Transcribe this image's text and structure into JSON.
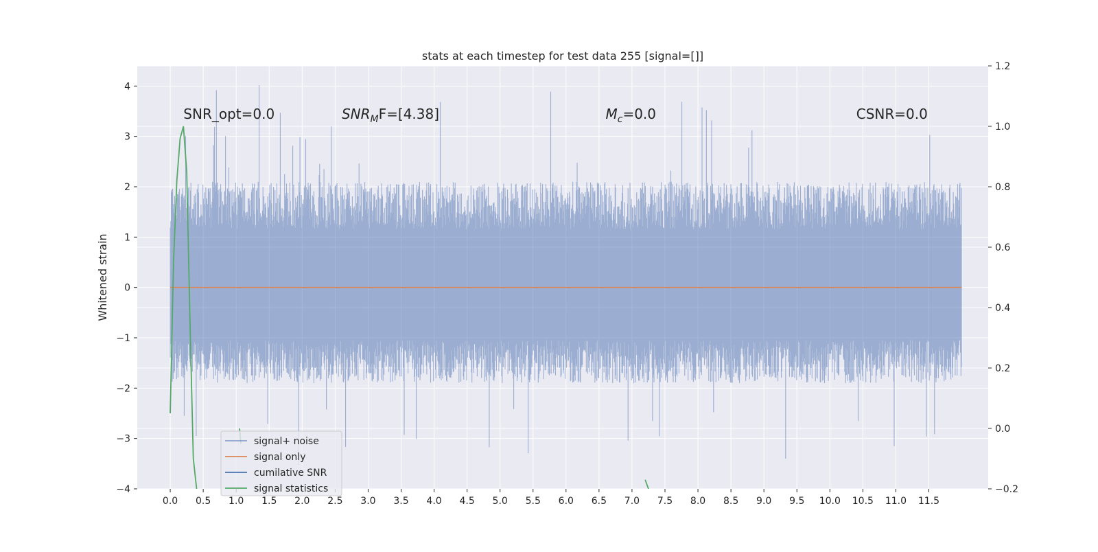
{
  "chart_data": {
    "type": "line",
    "title": "stats at each timestep for test data 255 [signal=[]]",
    "xlabel": "",
    "ylabel": "Whitened strain",
    "y2label": "",
    "xlim": [
      -0.5,
      12.4
    ],
    "ylim": [
      -4,
      4.4
    ],
    "y2lim": [
      -0.2,
      1.2
    ],
    "x_ticks": [
      0.0,
      0.5,
      1.0,
      1.5,
      2.0,
      2.5,
      3.0,
      3.5,
      4.0,
      4.5,
      5.0,
      5.5,
      6.0,
      6.5,
      7.0,
      7.5,
      8.0,
      8.5,
      9.0,
      9.5,
      10.0,
      10.5,
      11.0,
      11.5
    ],
    "x_tick_labels": [
      "0.0",
      "0.5",
      "1.0",
      "1.5",
      "2.0",
      "2.5",
      "3.0",
      "3.5",
      "4.0",
      "4.5",
      "5.0",
      "5.5",
      "6.0",
      "6.5",
      "7.0",
      "7.5",
      "8.0",
      "8.5",
      "9.0",
      "9.5",
      "10.0",
      "10.5",
      "11.0",
      "11.5"
    ],
    "y_ticks": [
      -4,
      -3,
      -2,
      -1,
      0,
      1,
      2,
      3,
      4
    ],
    "y_tick_labels": [
      "−4",
      "−3",
      "−2",
      "−1",
      "0",
      "1",
      "2",
      "3",
      "4"
    ],
    "y2_ticks": [
      -0.2,
      0.0,
      0.2,
      0.4,
      0.6,
      0.8,
      1.0,
      1.2
    ],
    "y2_tick_labels": [
      "−0.2",
      "0.0",
      "0.2",
      "0.4",
      "0.6",
      "0.8",
      "1.0",
      "1.2"
    ],
    "grid": true,
    "legend_position": "lower-left",
    "series": [
      {
        "name": "signal+ noise",
        "axis": "left",
        "color": "#4c72b0",
        "style": "noise band",
        "x_range": [
          0.0,
          12.0
        ],
        "typical_range": [
          -1.9,
          2.1
        ],
        "extreme_range": [
          -3.6,
          4.1
        ]
      },
      {
        "name": "signal only",
        "axis": "left",
        "color": "#dd8452",
        "x": [
          0.0,
          12.0
        ],
        "y": [
          0.0,
          0.0
        ]
      },
      {
        "name": "cumilative SNR",
        "axis": "right",
        "color": "#4c72b0",
        "x": [],
        "y": []
      },
      {
        "name": "signal statistics",
        "axis": "right",
        "color": "#55a868",
        "segments": [
          {
            "x": [
              0.0,
              0.05,
              0.1,
              0.15,
              0.2,
              0.25,
              0.3,
              0.35,
              0.4
            ],
            "y": [
              0.05,
              0.55,
              0.82,
              0.96,
              1.0,
              0.85,
              0.35,
              -0.1,
              -0.2
            ]
          },
          {
            "x": [
              1.05,
              1.07
            ],
            "y": [
              0.0,
              -0.05
            ]
          },
          {
            "x": [
              7.2,
              7.25
            ],
            "y": [
              -0.17,
              -0.2
            ]
          }
        ]
      }
    ],
    "annotations": [
      {
        "text": "SNR_opt=0.0",
        "x": 0.2,
        "y": 3.35
      },
      {
        "text_main": "SNR",
        "text_sub": "M",
        "text_rest": "F=[4.38]",
        "italic_main": true,
        "x": 2.6,
        "y": 3.35
      },
      {
        "text_main": "M",
        "text_sub": "c",
        "text_rest": "=0.0",
        "italic_main": true,
        "x": 6.6,
        "y": 3.35
      },
      {
        "text": "CSNR=0.0",
        "x": 10.4,
        "y": 3.35
      }
    ],
    "colors": {
      "background": "#eaeaf2",
      "grid": "#ffffff"
    }
  }
}
